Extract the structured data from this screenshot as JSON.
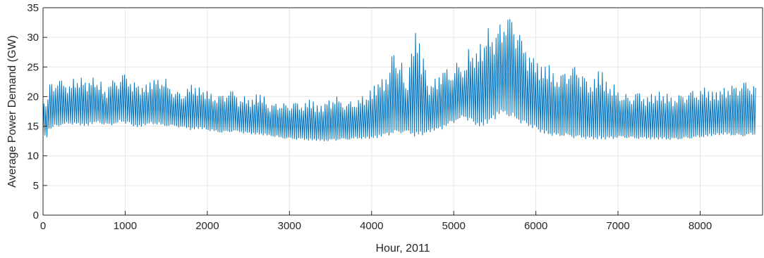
{
  "chart_data": {
    "type": "line",
    "title": "",
    "xlabel": "Hour, 2011",
    "ylabel": "Average Power Demand (GW)",
    "xlim": [
      0,
      8760
    ],
    "ylim": [
      0,
      35
    ],
    "xticks": [
      0,
      1000,
      2000,
      3000,
      4000,
      5000,
      6000,
      7000,
      8000
    ],
    "yticks": [
      0,
      5,
      10,
      15,
      20,
      25,
      30,
      35
    ],
    "grid": true,
    "legend": "none",
    "line_color": "#0072BD",
    "envelope_note_removed": true,
    "series": [
      {
        "sampled_every_hours": 24,
        "daily_min": [
          13.2,
          14.5,
          15.0,
          15.2,
          15.4,
          15.3,
          15.2,
          15.1,
          15.4,
          15.6,
          15.3,
          15.2,
          15.4,
          15.7,
          15.5,
          15.0,
          14.9,
          15.2,
          15.4,
          15.3,
          15.1,
          15.0,
          15.0,
          14.8,
          14.7,
          14.4,
          14.6,
          14.5,
          14.2,
          14.1,
          13.9,
          14.0,
          14.1,
          14.0,
          13.8,
          13.7,
          13.6,
          13.5,
          13.4,
          13.2,
          13.0,
          12.9,
          12.8,
          12.8,
          12.7,
          12.6,
          12.6,
          12.5,
          12.5,
          12.6,
          12.7,
          12.7,
          12.8,
          12.9,
          12.9,
          12.9,
          13.0,
          13.3,
          13.5,
          13.7,
          13.8,
          14.0,
          13.6,
          13.3,
          13.5,
          14.0,
          14.3,
          14.5,
          15.0,
          15.6,
          16.0,
          16.5,
          16.0,
          15.2,
          15.0,
          15.5,
          16.2,
          17.0,
          17.0,
          16.5,
          16.0,
          15.5,
          15.0,
          14.7,
          14.0,
          13.7,
          13.4,
          13.4,
          13.3,
          13.2,
          13.0,
          13.0,
          12.9,
          12.8,
          12.8,
          12.8,
          12.9,
          13.0,
          13.1,
          13.0,
          12.9,
          12.9,
          12.9,
          12.8,
          12.8,
          12.8,
          12.7,
          12.8,
          12.8,
          12.9,
          13.0,
          13.1,
          13.2,
          13.4,
          13.5,
          13.6,
          13.5,
          13.4,
          13.3,
          13.4,
          13.5,
          13.5
        ],
        "daily_max": [
          19.5,
          22.6,
          22.8,
          22.8,
          22.0,
          23.0,
          23.2,
          22.5,
          23.2,
          22.5,
          21.0,
          22.8,
          22.6,
          24.2,
          23.0,
          22.5,
          21.8,
          22.0,
          22.8,
          23.0,
          23.0,
          21.8,
          21.0,
          20.5,
          21.5,
          22.0,
          21.5,
          21.0,
          20.5,
          20.0,
          20.5,
          21.0,
          21.0,
          19.5,
          20.0,
          19.5,
          20.5,
          20.0,
          18.5,
          19.0,
          18.9,
          18.7,
          19.3,
          18.8,
          19.0,
          19.5,
          18.5,
          18.8,
          19.5,
          20.0,
          19.5,
          19.0,
          19.2,
          19.6,
          20.0,
          21.0,
          22.2,
          23.0,
          24.0,
          27.8,
          26.0,
          22.5,
          28.0,
          30.7,
          26.5,
          22.0,
          23.0,
          24.0,
          25.0,
          24.0,
          26.0,
          25.0,
          28.0,
          27.5,
          29.0,
          31.5,
          30.0,
          32.5,
          33.0,
          34.0,
          31.0,
          29.5,
          27.0,
          26.5,
          25.0,
          25.5,
          24.0,
          23.5,
          24.5,
          25.0,
          25.2,
          24.0,
          22.5,
          23.0,
          24.5,
          22.5,
          22.0,
          21.0,
          20.5,
          20.0,
          21.0,
          20.5,
          20.0,
          20.5,
          20.8,
          20.5,
          20.0,
          20.2,
          20.5,
          21.0,
          21.0,
          21.2,
          21.5,
          20.8,
          21.0,
          21.5,
          21.8,
          22.0,
          22.5,
          22.5,
          22.2
        ]
      }
    ]
  }
}
